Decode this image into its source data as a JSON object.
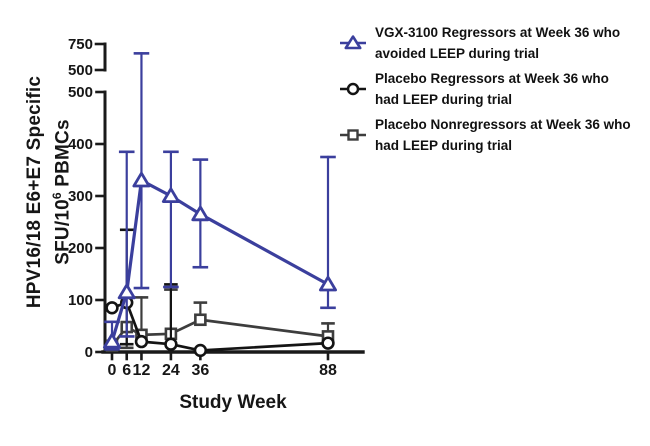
{
  "chart_data": {
    "type": "line",
    "x": [
      0,
      6,
      12,
      24,
      36,
      88
    ],
    "xlabel": "Study Week",
    "ylabel_line1": "HPV16/18 E6+E7 Specific",
    "ylabel_line2": "SFU/10⁶ PBMCs",
    "ylabel_line2_parts": {
      "pre": "SFU/10",
      "sup": "6",
      "post": " PBMCs"
    },
    "y_axis": {
      "main_ticks": [
        0,
        100,
        200,
        300,
        400,
        500
      ],
      "break_segment_ticks": [
        500,
        750
      ],
      "break_between": [
        500,
        500
      ],
      "main_range": [
        0,
        500
      ],
      "break_range": [
        500,
        750
      ]
    },
    "x_ticks": [
      "0",
      "6",
      "12",
      "24",
      "36",
      "88"
    ],
    "grid": false,
    "legend_position": "top-right",
    "axis_color": "#1a1a1a",
    "series": [
      {
        "name": "VGX-3100 Regressors at Week 36 who avoided LEEP during trial",
        "legend_line1": "VGX-3100 Regressors at Week 36 who",
        "legend_line2": "avoided LEEP during trial",
        "marker": "triangle",
        "color": "#3b3f9d",
        "values": [
          20,
          115,
          330,
          300,
          265,
          130
        ],
        "err_lo": [
          5,
          30,
          123,
          125,
          163,
          85
        ],
        "err_hi": [
          58,
          385,
          660,
          385,
          370,
          375
        ]
      },
      {
        "name": "Placebo Regressors at Week 36 who had LEEP during trial",
        "legend_line1": "Placebo Regressors at Week 36 who",
        "legend_line2": "had LEEP during trial",
        "marker": "circle",
        "color": "#141414",
        "values": [
          85,
          95,
          20,
          15,
          3,
          17
        ],
        "err_lo": [
          null,
          15,
          null,
          null,
          null,
          null
        ],
        "err_hi": [
          null,
          235,
          null,
          130,
          null,
          null
        ]
      },
      {
        "name": "Placebo Nonregressors at Week 36 who had LEEP during trial",
        "legend_line1": "Placebo Nonregressors at Week 36 who",
        "legend_line2": "had LEEP during trial",
        "marker": "square",
        "color": "#3d3d3d",
        "values": [
          12,
          48,
          33,
          35,
          62,
          30
        ],
        "err_lo": [
          null,
          8,
          null,
          null,
          null,
          null
        ],
        "err_hi": [
          null,
          null,
          105,
          120,
          95,
          55
        ]
      }
    ]
  }
}
